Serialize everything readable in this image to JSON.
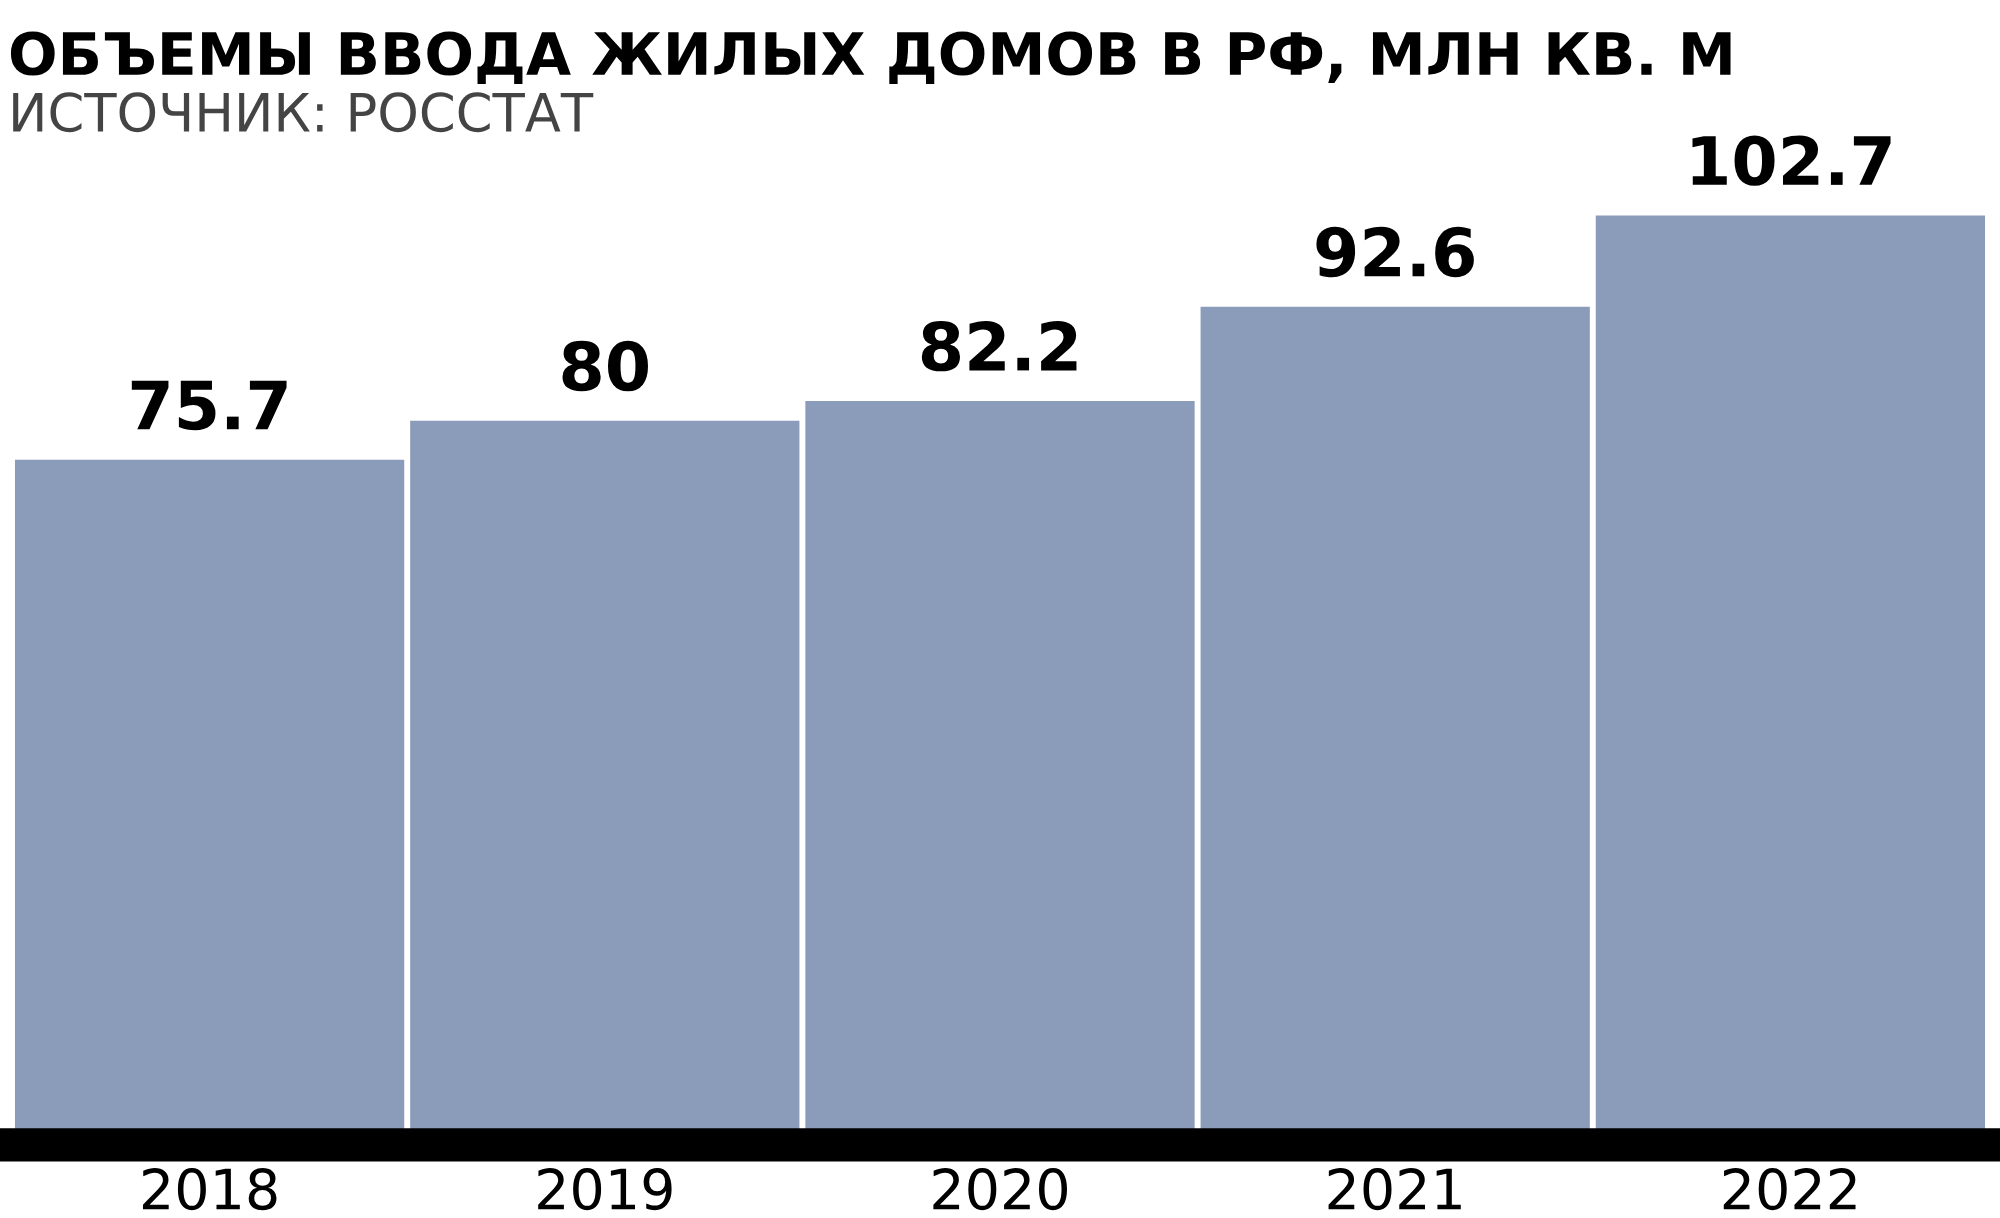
{
  "chart_data": {
    "type": "bar",
    "title": "ОБЪЕМЫ ВВОДА ЖИЛЫХ ДОМОВ В РФ, МЛН КВ. М",
    "annotations": [
      "ИСТОЧНИК: РОССТАТ"
    ],
    "categories": [
      "2018",
      "2019",
      "2020",
      "2021",
      "2022"
    ],
    "values": [
      75.7,
      80,
      82.2,
      92.6,
      102.7
    ],
    "color": "#8b9bba",
    "data_labels": true,
    "grid": false,
    "legend": false,
    "tick_labels": "x"
  }
}
